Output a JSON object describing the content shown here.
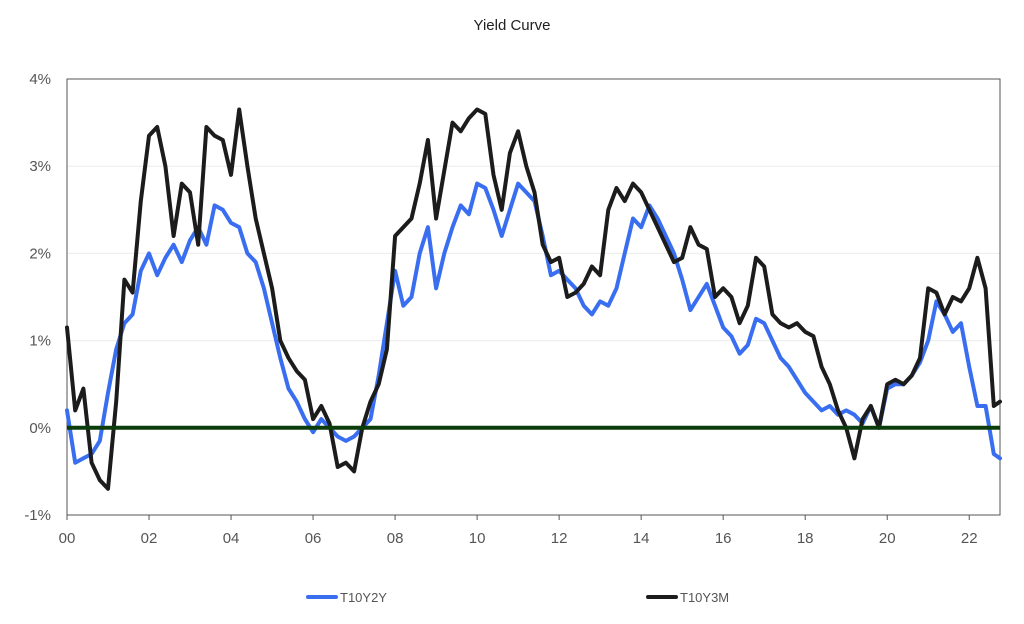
{
  "chart_data": {
    "type": "line",
    "title": "Yield Curve",
    "xlabel": "",
    "ylabel": "",
    "x_tick_labels": [
      "00",
      "02",
      "04",
      "06",
      "08",
      "10",
      "12",
      "14",
      "16",
      "18",
      "20",
      "22"
    ],
    "y_tick_labels": [
      "4%",
      "3%",
      "2%",
      "1%",
      "0%",
      "-1%"
    ],
    "y_tick_values": [
      4,
      3,
      2,
      1,
      0,
      -1
    ],
    "xlim": [
      2000.0,
      2022.75
    ],
    "ylim": [
      -1,
      4
    ],
    "grid": true,
    "legend_position": "bottom",
    "zero_line_color": "#0b3d0b",
    "series": [
      {
        "name": "T10Y2Y",
        "color": "#3a6ef0",
        "x": [
          2000.0,
          2000.2,
          2000.4,
          2000.6,
          2000.8,
          2001.0,
          2001.2,
          2001.4,
          2001.6,
          2001.8,
          2002.0,
          2002.2,
          2002.4,
          2002.6,
          2002.8,
          2003.0,
          2003.2,
          2003.4,
          2003.6,
          2003.8,
          2004.0,
          2004.2,
          2004.4,
          2004.6,
          2004.8,
          2005.0,
          2005.2,
          2005.4,
          2005.6,
          2005.8,
          2006.0,
          2006.2,
          2006.4,
          2006.6,
          2006.8,
          2007.0,
          2007.2,
          2007.4,
          2007.6,
          2007.8,
          2008.0,
          2008.2,
          2008.4,
          2008.6,
          2008.8,
          2009.0,
          2009.2,
          2009.4,
          2009.6,
          2009.8,
          2010.0,
          2010.2,
          2010.4,
          2010.6,
          2010.8,
          2011.0,
          2011.2,
          2011.4,
          2011.6,
          2011.8,
          2012.0,
          2012.2,
          2012.4,
          2012.6,
          2012.8,
          2013.0,
          2013.2,
          2013.4,
          2013.6,
          2013.8,
          2014.0,
          2014.2,
          2014.4,
          2014.6,
          2014.8,
          2015.0,
          2015.2,
          2015.4,
          2015.6,
          2015.8,
          2016.0,
          2016.2,
          2016.4,
          2016.6,
          2016.8,
          2017.0,
          2017.2,
          2017.4,
          2017.6,
          2017.8,
          2018.0,
          2018.2,
          2018.4,
          2018.6,
          2018.8,
          2019.0,
          2019.2,
          2019.4,
          2019.6,
          2019.8,
          2020.0,
          2020.2,
          2020.4,
          2020.6,
          2020.8,
          2021.0,
          2021.2,
          2021.4,
          2021.6,
          2021.8,
          2022.0,
          2022.2,
          2022.4,
          2022.6,
          2022.75
        ],
        "values": [
          0.2,
          -0.4,
          -0.35,
          -0.3,
          -0.15,
          0.4,
          0.9,
          1.2,
          1.3,
          1.8,
          2.0,
          1.75,
          1.95,
          2.1,
          1.9,
          2.15,
          2.3,
          2.1,
          2.55,
          2.5,
          2.35,
          2.3,
          2.0,
          1.9,
          1.6,
          1.2,
          0.8,
          0.45,
          0.3,
          0.1,
          -0.05,
          0.1,
          0.0,
          -0.1,
          -0.15,
          -0.1,
          0.0,
          0.1,
          0.6,
          1.2,
          1.8,
          1.4,
          1.5,
          2.0,
          2.3,
          1.6,
          2.0,
          2.3,
          2.55,
          2.45,
          2.8,
          2.75,
          2.5,
          2.2,
          2.5,
          2.8,
          2.7,
          2.6,
          2.2,
          1.75,
          1.8,
          1.7,
          1.6,
          1.4,
          1.3,
          1.45,
          1.4,
          1.6,
          2.0,
          2.4,
          2.3,
          2.55,
          2.4,
          2.2,
          2.0,
          1.7,
          1.35,
          1.5,
          1.65,
          1.4,
          1.15,
          1.05,
          0.85,
          0.95,
          1.25,
          1.2,
          1.0,
          0.8,
          0.7,
          0.55,
          0.4,
          0.3,
          0.2,
          0.25,
          0.15,
          0.2,
          0.15,
          0.05,
          0.25,
          0.0,
          0.45,
          0.5,
          0.5,
          0.6,
          0.75,
          1.0,
          1.45,
          1.3,
          1.1,
          1.2,
          0.7,
          0.25,
          0.25,
          -0.3,
          -0.35
        ]
      },
      {
        "name": "T10Y3M",
        "color": "#1c1c1c",
        "x": [
          2000.0,
          2000.2,
          2000.4,
          2000.6,
          2000.8,
          2001.0,
          2001.2,
          2001.4,
          2001.6,
          2001.8,
          2002.0,
          2002.2,
          2002.4,
          2002.6,
          2002.8,
          2003.0,
          2003.2,
          2003.4,
          2003.6,
          2003.8,
          2004.0,
          2004.2,
          2004.4,
          2004.6,
          2004.8,
          2005.0,
          2005.2,
          2005.4,
          2005.6,
          2005.8,
          2006.0,
          2006.2,
          2006.4,
          2006.6,
          2006.8,
          2007.0,
          2007.2,
          2007.4,
          2007.6,
          2007.8,
          2008.0,
          2008.2,
          2008.4,
          2008.6,
          2008.8,
          2009.0,
          2009.2,
          2009.4,
          2009.6,
          2009.8,
          2010.0,
          2010.2,
          2010.4,
          2010.6,
          2010.8,
          2011.0,
          2011.2,
          2011.4,
          2011.6,
          2011.8,
          2012.0,
          2012.2,
          2012.4,
          2012.6,
          2012.8,
          2013.0,
          2013.2,
          2013.4,
          2013.6,
          2013.8,
          2014.0,
          2014.2,
          2014.4,
          2014.6,
          2014.8,
          2015.0,
          2015.2,
          2015.4,
          2015.6,
          2015.8,
          2016.0,
          2016.2,
          2016.4,
          2016.6,
          2016.8,
          2017.0,
          2017.2,
          2017.4,
          2017.6,
          2017.8,
          2018.0,
          2018.2,
          2018.4,
          2018.6,
          2018.8,
          2019.0,
          2019.2,
          2019.4,
          2019.6,
          2019.8,
          2020.0,
          2020.2,
          2020.4,
          2020.6,
          2020.8,
          2021.0,
          2021.2,
          2021.4,
          2021.6,
          2021.8,
          2022.0,
          2022.2,
          2022.4,
          2022.6,
          2022.75
        ],
        "values": [
          1.15,
          0.2,
          0.45,
          -0.4,
          -0.6,
          -0.7,
          0.3,
          1.7,
          1.55,
          2.6,
          3.35,
          3.45,
          3.0,
          2.2,
          2.8,
          2.7,
          2.1,
          3.45,
          3.35,
          3.3,
          2.9,
          3.65,
          3.0,
          2.4,
          2.0,
          1.6,
          1.0,
          0.8,
          0.65,
          0.55,
          0.1,
          0.25,
          0.05,
          -0.45,
          -0.4,
          -0.5,
          0.0,
          0.3,
          0.5,
          0.9,
          2.2,
          2.3,
          2.4,
          2.8,
          3.3,
          2.4,
          2.95,
          3.5,
          3.4,
          3.55,
          3.65,
          3.6,
          2.9,
          2.5,
          3.15,
          3.4,
          3.0,
          2.7,
          2.1,
          1.9,
          1.95,
          1.5,
          1.55,
          1.65,
          1.85,
          1.75,
          2.5,
          2.75,
          2.6,
          2.8,
          2.7,
          2.5,
          2.3,
          2.1,
          1.9,
          1.95,
          2.3,
          2.1,
          2.05,
          1.5,
          1.6,
          1.5,
          1.2,
          1.4,
          1.95,
          1.85,
          1.3,
          1.2,
          1.15,
          1.2,
          1.1,
          1.05,
          0.7,
          0.5,
          0.2,
          0.0,
          -0.35,
          0.1,
          0.25,
          0.0,
          0.5,
          0.55,
          0.5,
          0.6,
          0.8,
          1.6,
          1.55,
          1.3,
          1.5,
          1.45,
          1.6,
          1.95,
          1.6,
          0.25,
          0.3
        ]
      }
    ]
  }
}
